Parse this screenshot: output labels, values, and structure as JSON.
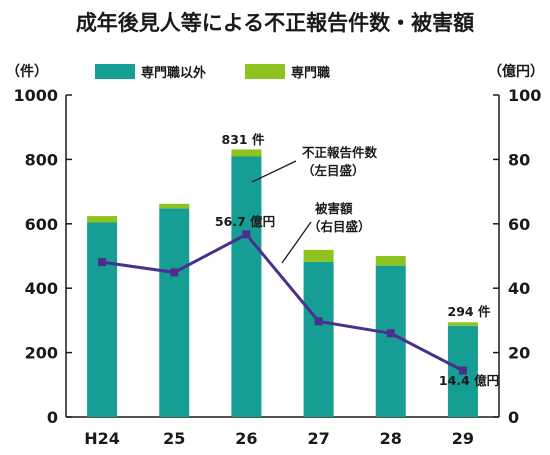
{
  "title": "成年後見人等による不正報告件数・被害額",
  "colors": {
    "non_professional": "#179e94",
    "professional": "#8dc21f",
    "damage_line": "#4b2f8f",
    "axis": "#1a1a1a"
  },
  "chart_data": {
    "type": "bar+line",
    "title": "成年後見人等による不正報告件数・被害額",
    "categories": [
      "H24",
      "25",
      "26",
      "27",
      "28",
      "29"
    ],
    "left_axis": {
      "unit_label": "（件）",
      "ylim": [
        0,
        1000
      ],
      "ticks": [
        "0",
        "200",
        "400",
        "600",
        "800",
        "1000"
      ]
    },
    "right_axis": {
      "unit_label": "（億円）",
      "ylim": [
        0,
        100
      ],
      "ticks": [
        "0",
        "20",
        "40",
        "60",
        "80",
        "100"
      ]
    },
    "series": [
      {
        "name": "専門職以外",
        "type": "bar",
        "stack": "cases",
        "axis": "left",
        "values": [
          604,
          648,
          809,
          482,
          470,
          283
        ]
      },
      {
        "name": "専門職",
        "type": "bar",
        "stack": "cases",
        "axis": "left",
        "values": [
          20,
          14,
          22,
          37,
          30,
          11
        ]
      },
      {
        "name": "被害額",
        "type": "line",
        "axis": "right",
        "values": [
          48.1,
          44.9,
          56.7,
          29.7,
          26.0,
          14.4
        ]
      }
    ],
    "legend": {
      "position": "top",
      "items": [
        "専門職以外",
        "専門職"
      ]
    },
    "annotations": {
      "bar_26_total": "831 件",
      "bar_29_total": "294 件",
      "line_26_value": "56.7 億円",
      "line_29_value": "14.4 億円",
      "bars_callout_line1": "不正報告件数",
      "bars_callout_line2": "（左目盛）",
      "line_callout_line1": "被害額",
      "line_callout_line2": "（右目盛）"
    },
    "grid": false
  }
}
